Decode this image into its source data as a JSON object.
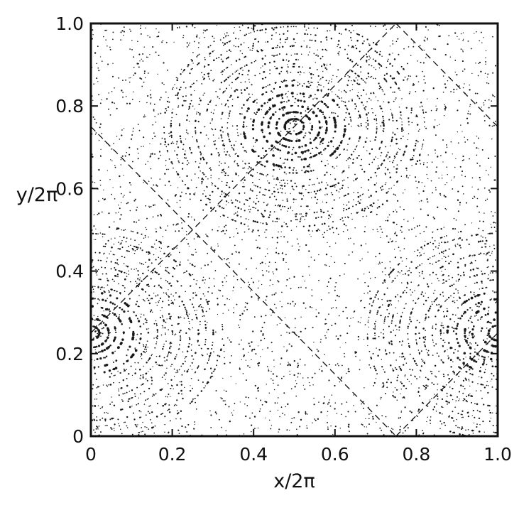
{
  "chart_data": {
    "type": "scatter",
    "title": "",
    "subtitle": "",
    "xlabel": "x/2π",
    "ylabel": "y/2π",
    "xlim": [
      0,
      1
    ],
    "ylim": [
      0,
      1
    ],
    "grid": false,
    "legend": "none",
    "xticks": [
      0,
      0.2,
      0.4,
      0.6,
      0.8,
      1.0
    ],
    "yticks": [
      0,
      0.2,
      0.4,
      0.6,
      0.8,
      1.0
    ],
    "xtick_labels": [
      "0",
      "0.2",
      "0.4",
      "0.6",
      "0.8",
      "1.0"
    ],
    "ytick_labels": [
      "0",
      "0.2",
      "0.4",
      "0.6",
      "0.8",
      "1.0"
    ],
    "series": [
      {
        "marker": "dot",
        "color": "#1a1a1a",
        "points_description": "Poincaré section: dense nested rings around elliptic centers",
        "elliptic_centers": [
          {
            "x": 0.5,
            "y": 0.75
          },
          {
            "x": 0.0,
            "y": 0.25
          },
          {
            "x": 1.0,
            "y": 0.25
          }
        ],
        "hyperbolic_points": [
          {
            "x": 0.25,
            "y": 0.5
          },
          {
            "x": 0.75,
            "y": 0.5
          }
        ]
      }
    ],
    "separatrices": [
      {
        "style": "dashed",
        "from": {
          "x": 0.0,
          "y": 0.75
        },
        "to": {
          "x": 0.75,
          "y": 0.0
        }
      },
      {
        "style": "dashed",
        "from": {
          "x": 0.0,
          "y": 0.25
        },
        "to": {
          "x": 0.75,
          "y": 1.0
        }
      },
      {
        "style": "dashed",
        "from": {
          "x": 0.75,
          "y": 0.0
        },
        "to": {
          "x": 1.0,
          "y": 0.25
        }
      },
      {
        "style": "dashed",
        "from": {
          "x": 0.75,
          "y": 1.0
        },
        "to": {
          "x": 1.0,
          "y": 0.75
        }
      }
    ]
  }
}
